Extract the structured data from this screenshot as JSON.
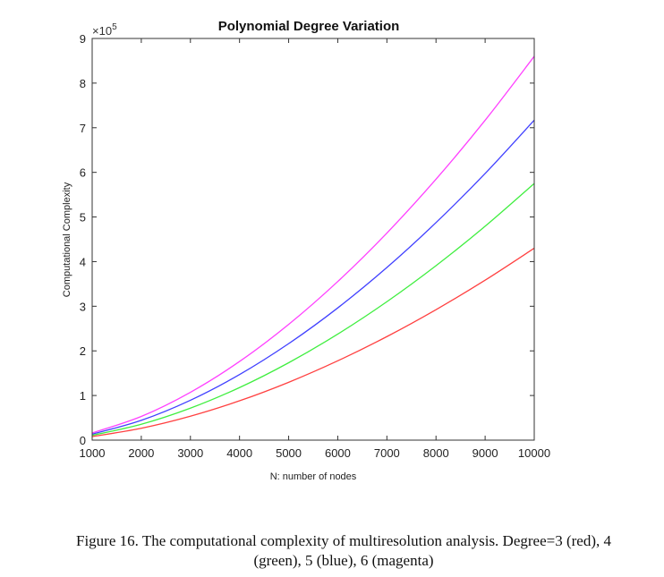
{
  "chart_data": {
    "type": "line",
    "title": "Polynomial Degree Variation",
    "xlabel": "N: number of nodes",
    "ylabel": "Computational Complexity",
    "y_exponent_label": "×10",
    "y_exponent": "5",
    "xlim": [
      1000,
      10000
    ],
    "ylim": [
      0,
      900000
    ],
    "xticks": [
      1000,
      2000,
      3000,
      4000,
      5000,
      6000,
      7000,
      8000,
      9000,
      10000
    ],
    "yticks": [
      0,
      1,
      2,
      3,
      4,
      5,
      6,
      7,
      8,
      9
    ],
    "y_scale": 100000,
    "grid": false,
    "x": [
      1000,
      2000,
      3000,
      4000,
      5000,
      6000,
      7000,
      8000,
      9000,
      10000
    ],
    "series": [
      {
        "name": "Degree=3",
        "color": "#ff4040",
        "values": [
          8000,
          26600,
          53600,
          88100,
          129600,
          177700,
          232000,
          292300,
          358400,
          430000
        ]
      },
      {
        "name": "Degree=4",
        "color": "#40ee40",
        "values": [
          10700,
          35500,
          71600,
          117800,
          173400,
          237600,
          310200,
          390900,
          479200,
          575000
        ]
      },
      {
        "name": "Degree=5",
        "color": "#4040ff",
        "values": [
          13400,
          44300,
          89300,
          146900,
          216200,
          296300,
          386800,
          487400,
          597500,
          717000
        ]
      },
      {
        "name": "Degree=6",
        "color": "#ff40ff",
        "values": [
          16000,
          53100,
          107200,
          176200,
          259300,
          355400,
          464000,
          584600,
          716700,
          860000
        ]
      }
    ]
  },
  "caption": {
    "line1": "Figure 16. The computational complexity of multiresolution analysis. Degree=3 (red), 4",
    "line2": "(green), 5 (blue), 6 (magenta)"
  }
}
